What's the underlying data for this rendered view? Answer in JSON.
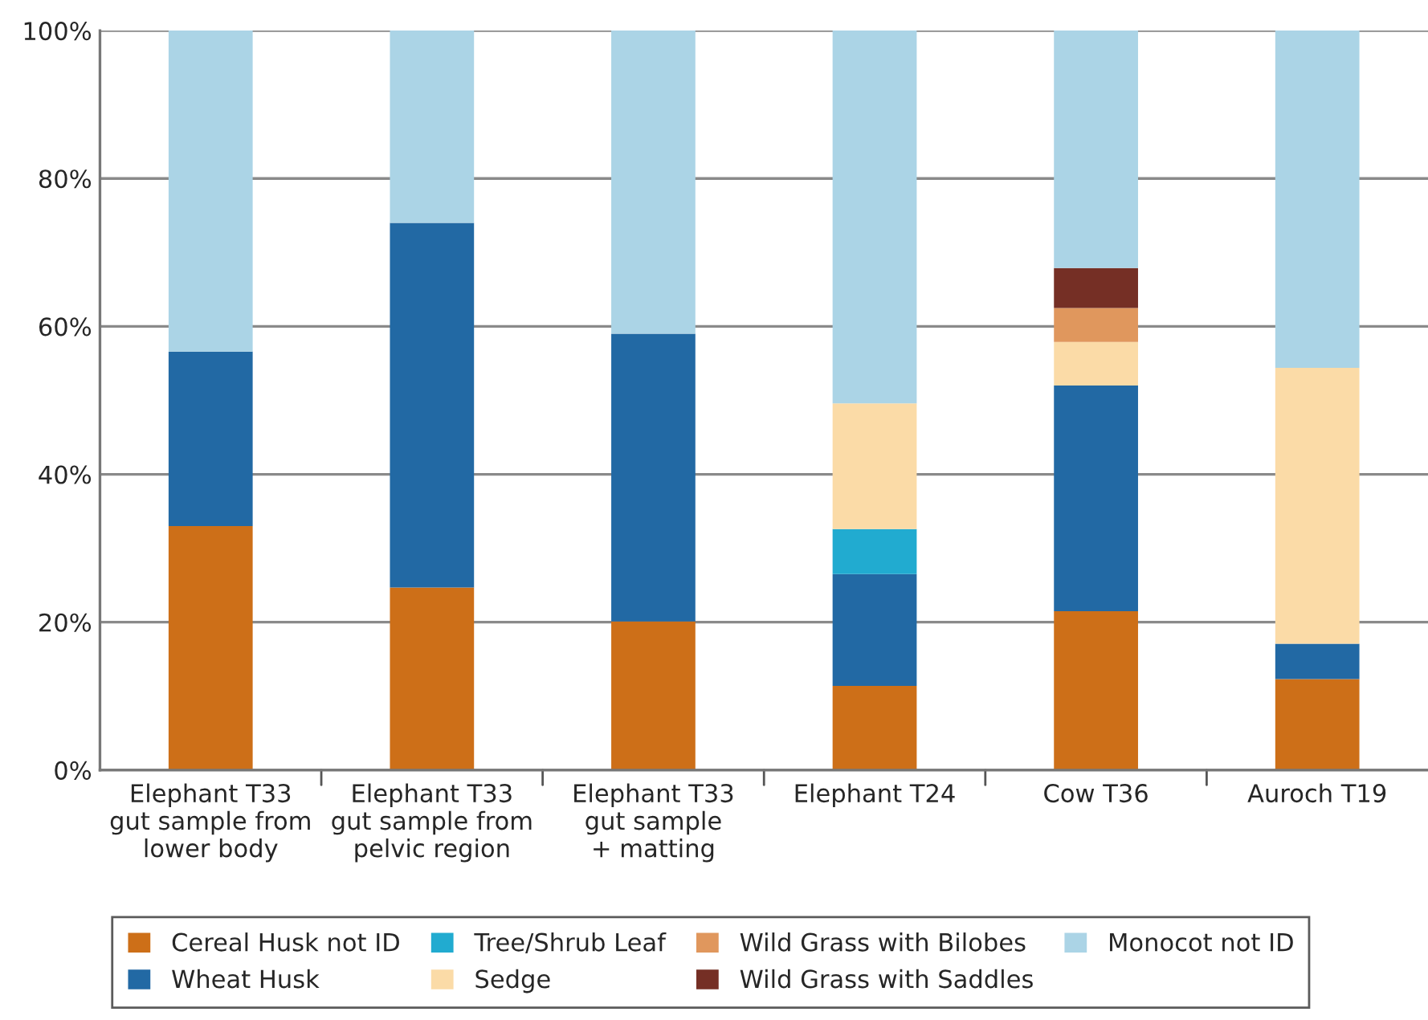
{
  "chart_data": {
    "type": "bar",
    "stacked": true,
    "categories": [
      "Elephant T33\ngut sample from\nlower body",
      "Elephant T33\ngut sample from\npelvic region",
      "Elephant T33\ngut sample\n+ matting",
      "Elephant T24",
      "Cow T36",
      "Auroch T19"
    ],
    "series": [
      {
        "name": "Cereal Husk not ID",
        "color": "#cd6f18",
        "values": [
          33.0,
          24.7,
          20.1,
          11.4,
          21.5,
          12.3
        ]
      },
      {
        "name": "Wheat Husk",
        "color": "#2269a4",
        "values": [
          23.6,
          49.3,
          38.9,
          15.1,
          30.5,
          4.8
        ]
      },
      {
        "name": "Tree/Shrub Leaf",
        "color": "#21abd0",
        "values": [
          0,
          0,
          0,
          6.1,
          0,
          0
        ]
      },
      {
        "name": "Sedge",
        "color": "#fbdba7",
        "values": [
          0,
          0,
          0,
          17.0,
          5.9,
          37.3
        ]
      },
      {
        "name": "Wild Grass with Bilobes",
        "color": "#e0975d",
        "values": [
          0,
          0,
          0,
          0,
          4.6,
          0
        ]
      },
      {
        "name": "Wild Grass with Saddles",
        "color": "#752f25",
        "values": [
          0,
          0,
          0,
          0,
          5.4,
          0
        ]
      },
      {
        "name": "Monocot not ID",
        "color": "#abd4e6",
        "values": [
          43.4,
          26.0,
          41.0,
          50.4,
          32.1,
          45.6
        ]
      }
    ],
    "ylim": [
      0,
      100
    ],
    "yticks": [
      {
        "value": 0,
        "label": "0%"
      },
      {
        "value": 20,
        "label": "20%"
      },
      {
        "value": 40,
        "label": "40%"
      },
      {
        "value": 60,
        "label": "60%"
      },
      {
        "value": 80,
        "label": "80%"
      },
      {
        "value": 100,
        "label": "100%"
      }
    ],
    "grid": "y",
    "legend": "bottom"
  }
}
